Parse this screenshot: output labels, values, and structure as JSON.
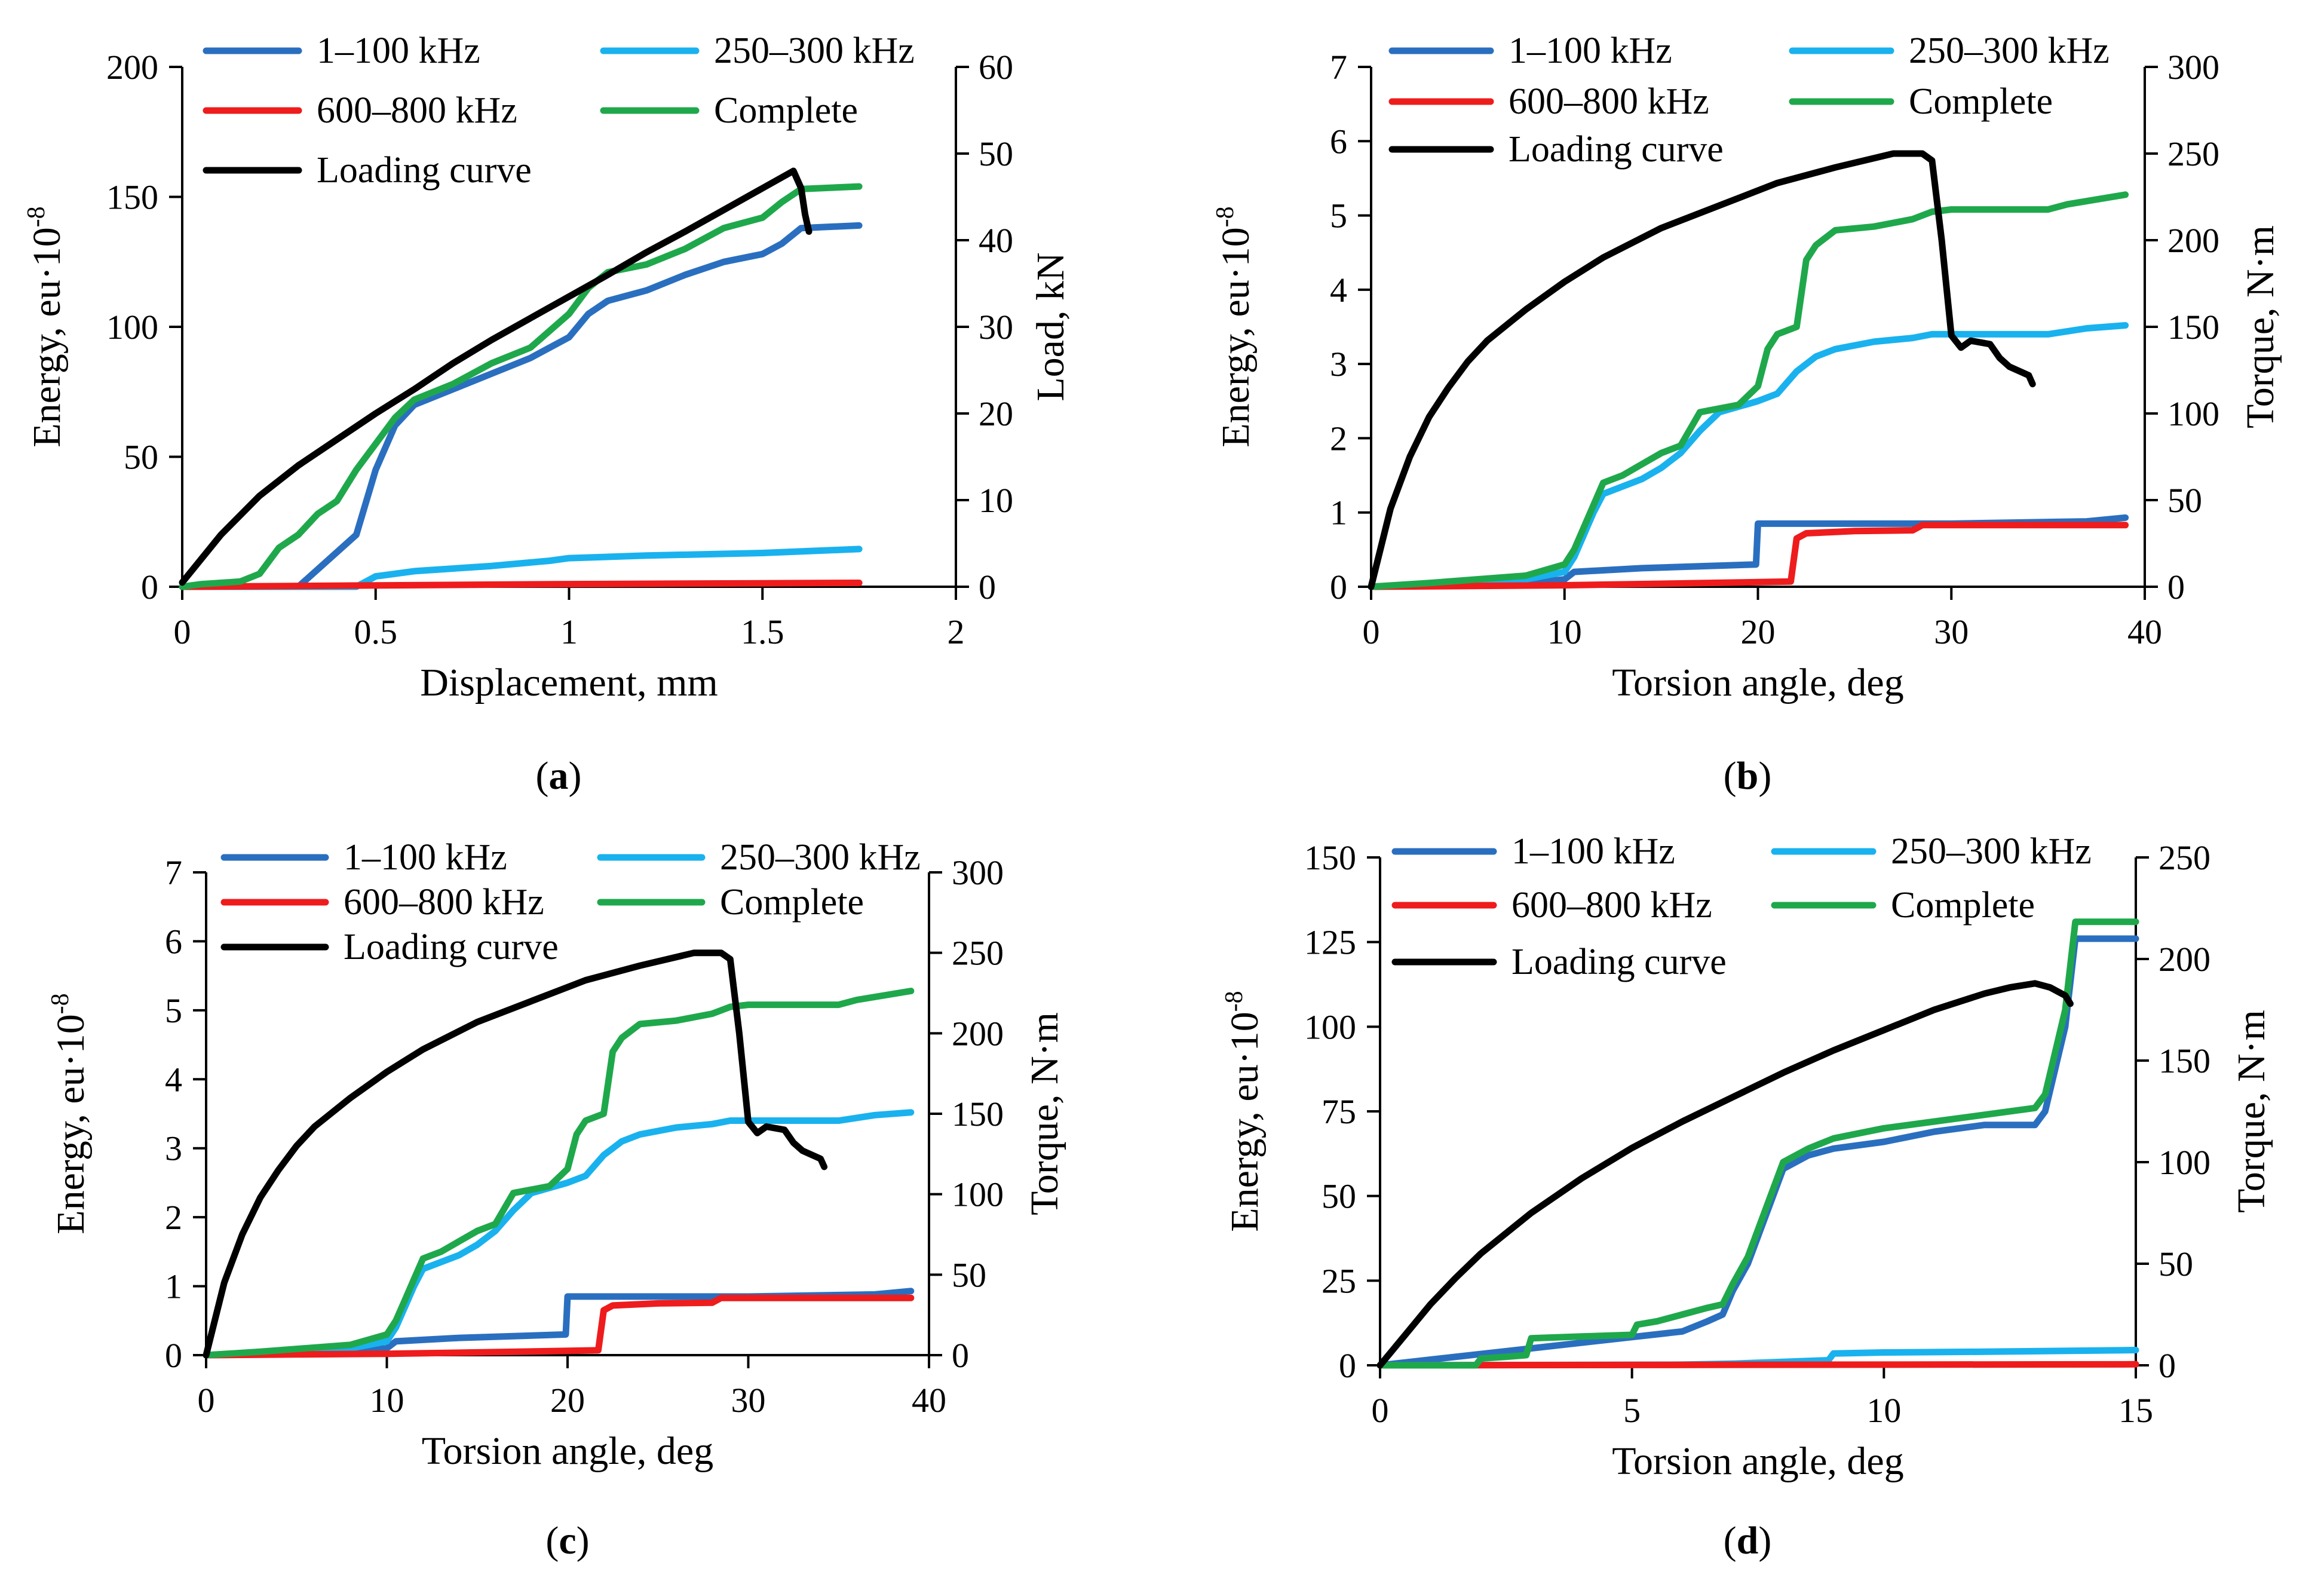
{
  "figure": {
    "captions": [
      "(a)",
      "(b)",
      "(c)",
      "(d)"
    ],
    "caption_letters": [
      "a",
      "b",
      "c",
      "d"
    ],
    "colors": {
      "band_1_100": "#2a6fbf",
      "band_250_300": "#19b2ee",
      "band_600_800": "#ee1c1c",
      "complete": "#1fa84b",
      "loading": "#000000"
    }
  },
  "chart_data": [
    {
      "type": "line",
      "panel": "a",
      "xlabel": "Displacement, mm",
      "ylabel": "Energy, eu·10",
      "ylabel_exp": "-8",
      "y2label": "Load, kN",
      "xlim": [
        0,
        2
      ],
      "ylim": [
        0,
        200
      ],
      "y2lim": [
        0,
        60
      ],
      "xticks": [
        0,
        0.5,
        1,
        1.5,
        2
      ],
      "xtick_labels": [
        "0",
        "0.5",
        "1",
        "1.5",
        "2"
      ],
      "yticks": [
        0,
        50,
        100,
        150,
        200
      ],
      "ytick_labels": [
        "0",
        "50",
        "100",
        "150",
        "200"
      ],
      "y2ticks": [
        0,
        10,
        20,
        30,
        40,
        50,
        60
      ],
      "y2tick_labels": [
        "0",
        "10",
        "20",
        "30",
        "40",
        "50",
        "60"
      ],
      "legend": [
        "1–100 kHz",
        "250–300 kHz",
        "600–800 kHz",
        "Complete",
        "Loading curve"
      ],
      "series": [
        {
          "name": "1–100 kHz",
          "axis": "left",
          "x": [
            0,
            0.1,
            0.2,
            0.3,
            0.45,
            0.5,
            0.55,
            0.6,
            0.7,
            0.8,
            0.9,
            1.0,
            1.05,
            1.1,
            1.2,
            1.3,
            1.4,
            1.5,
            1.55,
            1.6,
            1.75
          ],
          "y": [
            0,
            0,
            0,
            0,
            20,
            45,
            62,
            70,
            76,
            82,
            88,
            96,
            105,
            110,
            114,
            120,
            125,
            128,
            132,
            138,
            139
          ]
        },
        {
          "name": "250–300 kHz",
          "axis": "left",
          "x": [
            0,
            0.45,
            0.5,
            0.6,
            0.8,
            0.95,
            1.0,
            1.2,
            1.5,
            1.75
          ],
          "y": [
            0,
            0,
            4,
            6,
            8,
            10,
            11,
            12,
            13,
            14.5
          ]
        },
        {
          "name": "600–800 kHz",
          "axis": "left",
          "x": [
            0,
            0.5,
            1.0,
            1.75
          ],
          "y": [
            0,
            0.5,
            1,
            1.5
          ]
        },
        {
          "name": "Complete",
          "axis": "left",
          "x": [
            0,
            0.05,
            0.15,
            0.2,
            0.25,
            0.3,
            0.35,
            0.4,
            0.45,
            0.5,
            0.55,
            0.6,
            0.7,
            0.8,
            0.9,
            1.0,
            1.05,
            1.1,
            1.2,
            1.3,
            1.4,
            1.5,
            1.55,
            1.6,
            1.75
          ],
          "y": [
            0,
            1,
            2,
            5,
            15,
            20,
            28,
            33,
            45,
            55,
            65,
            72,
            78,
            86,
            92,
            105,
            115,
            121,
            124,
            130,
            138,
            142,
            148,
            153,
            154
          ]
        },
        {
          "name": "Loading curve",
          "axis": "right",
          "x": [
            0,
            0.1,
            0.2,
            0.3,
            0.4,
            0.5,
            0.6,
            0.7,
            0.8,
            0.9,
            1.0,
            1.1,
            1.2,
            1.3,
            1.4,
            1.5,
            1.58,
            1.6,
            1.61,
            1.62
          ],
          "y": [
            0.5,
            6,
            10.5,
            14,
            17,
            20,
            22.8,
            25.8,
            28.5,
            31,
            33.5,
            36,
            38.6,
            41,
            43.5,
            46,
            48,
            46,
            43,
            41
          ]
        }
      ]
    },
    {
      "type": "line",
      "panel": "b",
      "xlabel": "Torsion angle, deg",
      "ylabel": "Energy, eu·10",
      "ylabel_exp": "-8",
      "y2label": "Torque, N·m",
      "xlim": [
        0,
        40
      ],
      "ylim": [
        0,
        7
      ],
      "y2lim": [
        0,
        300
      ],
      "xticks": [
        0,
        10,
        20,
        30,
        40
      ],
      "xtick_labels": [
        "0",
        "10",
        "20",
        "30",
        "40"
      ],
      "yticks": [
        0,
        1,
        2,
        3,
        4,
        5,
        6,
        7
      ],
      "ytick_labels": [
        "0",
        "1",
        "2",
        "3",
        "4",
        "5",
        "6",
        "7"
      ],
      "y2ticks": [
        0,
        50,
        100,
        150,
        200,
        250,
        300
      ],
      "y2tick_labels": [
        "0",
        "50",
        "100",
        "150",
        "200",
        "250",
        "300"
      ],
      "legend": [
        "1–100 kHz",
        "250–300 kHz",
        "600–800 kHz",
        "Complete",
        "Loading curve"
      ],
      "series": [
        {
          "name": "1–100 kHz",
          "axis": "left",
          "x": [
            0,
            8,
            10,
            10.5,
            14,
            19.9,
            20,
            30,
            37,
            39
          ],
          "y": [
            0,
            0.05,
            0.1,
            0.2,
            0.25,
            0.3,
            0.85,
            0.85,
            0.88,
            0.93
          ]
        },
        {
          "name": "250–300 kHz",
          "axis": "left",
          "x": [
            0,
            8,
            10,
            10.5,
            11,
            11.5,
            12,
            14,
            15,
            16,
            17,
            18,
            20,
            21,
            22,
            23,
            24,
            26,
            28,
            29,
            30,
            35,
            37,
            39
          ],
          "y": [
            0,
            0.1,
            0.2,
            0.4,
            0.7,
            1.0,
            1.25,
            1.45,
            1.6,
            1.8,
            2.1,
            2.35,
            2.5,
            2.6,
            2.9,
            3.1,
            3.2,
            3.3,
            3.35,
            3.4,
            3.4,
            3.4,
            3.48,
            3.52
          ]
        },
        {
          "name": "600–800 kHz",
          "axis": "left",
          "x": [
            0,
            5,
            10,
            15,
            21.7,
            22,
            22.5,
            25,
            28,
            28.5,
            39
          ],
          "y": [
            0,
            0.01,
            0.02,
            0.04,
            0.07,
            0.65,
            0.72,
            0.75,
            0.76,
            0.83,
            0.83
          ]
        },
        {
          "name": "Complete",
          "axis": "left",
          "x": [
            0,
            3,
            8,
            10,
            10.5,
            11,
            11.5,
            12,
            13,
            14,
            15,
            16,
            17,
            19,
            20,
            20.5,
            21,
            22,
            22.5,
            23,
            24,
            26,
            28,
            29,
            30,
            35,
            36,
            39
          ],
          "y": [
            0,
            0.05,
            0.15,
            0.3,
            0.5,
            0.8,
            1.1,
            1.4,
            1.5,
            1.65,
            1.8,
            1.9,
            2.35,
            2.45,
            2.7,
            3.2,
            3.4,
            3.5,
            4.4,
            4.6,
            4.8,
            4.85,
            4.95,
            5.05,
            5.08,
            5.08,
            5.15,
            5.28
          ]
        },
        {
          "name": "Loading curve",
          "axis": "right",
          "x": [
            0,
            1,
            2,
            3,
            4,
            5,
            6,
            8,
            10,
            12,
            15,
            18,
            21,
            24,
            27,
            28.5,
            29,
            29.5,
            30,
            30.5,
            31,
            32,
            32.5,
            33,
            34,
            34.2
          ],
          "y": [
            0,
            45,
            75,
            98,
            115,
            130,
            142,
            160,
            176,
            190,
            207,
            220,
            233,
            242,
            250,
            250,
            246,
            200,
            145,
            138,
            142,
            140,
            132,
            127,
            122,
            117
          ]
        }
      ]
    },
    {
      "type": "line",
      "panel": "c",
      "xlabel": "Torsion angle, deg",
      "ylabel": "Energy, eu·10",
      "ylabel_exp": "-8",
      "y2label": "Torque, N·m",
      "xlim": [
        0,
        40
      ],
      "ylim": [
        0,
        7
      ],
      "y2lim": [
        0,
        300
      ],
      "xticks": [
        0,
        10,
        20,
        30,
        40
      ],
      "xtick_labels": [
        "0",
        "10",
        "20",
        "30",
        "40"
      ],
      "yticks": [
        0,
        1,
        2,
        3,
        4,
        5,
        6,
        7
      ],
      "ytick_labels": [
        "0",
        "1",
        "2",
        "3",
        "4",
        "5",
        "6",
        "7"
      ],
      "y2ticks": [
        0,
        50,
        100,
        150,
        200,
        250,
        300
      ],
      "y2tick_labels": [
        "0",
        "50",
        "100",
        "150",
        "200",
        "250",
        "300"
      ],
      "legend": [
        "1–100 kHz",
        "250–300 kHz",
        "600–800 kHz",
        "Complete",
        "Loading curve"
      ],
      "series": [
        {
          "name": "1–100 kHz",
          "axis": "left",
          "x": [
            0,
            8,
            10,
            10.5,
            14,
            19.9,
            20,
            30,
            37,
            39
          ],
          "y": [
            0,
            0.05,
            0.1,
            0.2,
            0.25,
            0.3,
            0.85,
            0.85,
            0.88,
            0.93
          ]
        },
        {
          "name": "250–300 kHz",
          "axis": "left",
          "x": [
            0,
            8,
            10,
            10.5,
            11,
            11.5,
            12,
            14,
            15,
            16,
            17,
            18,
            20,
            21,
            22,
            23,
            24,
            26,
            28,
            29,
            30,
            35,
            37,
            39
          ],
          "y": [
            0,
            0.1,
            0.2,
            0.4,
            0.7,
            1.0,
            1.25,
            1.45,
            1.6,
            1.8,
            2.1,
            2.35,
            2.5,
            2.6,
            2.9,
            3.1,
            3.2,
            3.3,
            3.35,
            3.4,
            3.4,
            3.4,
            3.48,
            3.52
          ]
        },
        {
          "name": "600–800 kHz",
          "axis": "left",
          "x": [
            0,
            5,
            10,
            15,
            21.7,
            22,
            22.5,
            25,
            28,
            28.5,
            39
          ],
          "y": [
            0,
            0.01,
            0.02,
            0.04,
            0.07,
            0.65,
            0.72,
            0.75,
            0.76,
            0.83,
            0.83
          ]
        },
        {
          "name": "Complete",
          "axis": "left",
          "x": [
            0,
            3,
            8,
            10,
            10.5,
            11,
            11.5,
            12,
            13,
            14,
            15,
            16,
            17,
            19,
            20,
            20.5,
            21,
            22,
            22.5,
            23,
            24,
            26,
            28,
            29,
            30,
            35,
            36,
            39
          ],
          "y": [
            0,
            0.05,
            0.15,
            0.3,
            0.5,
            0.8,
            1.1,
            1.4,
            1.5,
            1.65,
            1.8,
            1.9,
            2.35,
            2.45,
            2.7,
            3.2,
            3.4,
            3.5,
            4.4,
            4.6,
            4.8,
            4.85,
            4.95,
            5.05,
            5.08,
            5.08,
            5.15,
            5.28
          ]
        },
        {
          "name": "Loading curve",
          "axis": "right",
          "x": [
            0,
            1,
            2,
            3,
            4,
            5,
            6,
            8,
            10,
            12,
            15,
            18,
            21,
            24,
            27,
            28.5,
            29,
            29.5,
            30,
            30.5,
            31,
            32,
            32.5,
            33,
            34,
            34.2
          ],
          "y": [
            0,
            45,
            75,
            98,
            115,
            130,
            142,
            160,
            176,
            190,
            207,
            220,
            233,
            242,
            250,
            250,
            246,
            200,
            145,
            138,
            142,
            140,
            132,
            127,
            122,
            117
          ]
        }
      ]
    },
    {
      "type": "line",
      "panel": "d",
      "xlabel": "Torsion angle, deg",
      "ylabel": "Energy, eu·10",
      "ylabel_exp": "-8",
      "y2label": "Torque, N·m",
      "xlim": [
        0,
        15
      ],
      "ylim": [
        0,
        150
      ],
      "y2lim": [
        0,
        250
      ],
      "xticks": [
        0,
        5,
        10,
        15
      ],
      "xtick_labels": [
        "0",
        "5",
        "10",
        "15"
      ],
      "yticks": [
        0,
        25,
        50,
        75,
        100,
        125,
        150
      ],
      "ytick_labels": [
        "0",
        "25",
        "50",
        "75",
        "100",
        "125",
        "150"
      ],
      "y2ticks": [
        0,
        50,
        100,
        150,
        200,
        250
      ],
      "y2tick_labels": [
        "0",
        "50",
        "100",
        "150",
        "200",
        "250"
      ],
      "legend": [
        "1–100 kHz",
        "250–300 kHz",
        "600–800 kHz",
        "Complete",
        "Loading curve"
      ],
      "series": [
        {
          "name": "1–100 kHz",
          "axis": "left",
          "x": [
            0,
            6,
            6.5,
            6.8,
            7,
            7.3,
            7.6,
            8,
            8.5,
            9,
            10,
            11,
            12,
            13,
            13.2,
            13.6,
            13.8,
            15
          ],
          "y": [
            0,
            10,
            13,
            15,
            22,
            30,
            42,
            58,
            62,
            64,
            66,
            69,
            71,
            71,
            75,
            100,
            126,
            126
          ]
        },
        {
          "name": "250–300 kHz",
          "axis": "left",
          "x": [
            0,
            6,
            7,
            8,
            8.9,
            9,
            10,
            12,
            15
          ],
          "y": [
            0,
            0.2,
            0.5,
            1,
            1.5,
            3.5,
            3.8,
            4,
            4.5
          ]
        },
        {
          "name": "600–800 kHz",
          "axis": "left",
          "x": [
            0,
            5,
            10,
            15
          ],
          "y": [
            0,
            0.1,
            0.2,
            0.3
          ]
        },
        {
          "name": "Complete",
          "axis": "left",
          "x": [
            0,
            1.9,
            2,
            2.5,
            2.9,
            3,
            4,
            5,
            5.1,
            5.5,
            6,
            6.5,
            6.8,
            7,
            7.3,
            7.6,
            8,
            8.5,
            9,
            10,
            11,
            12,
            13,
            13.2,
            13.6,
            13.8,
            15
          ],
          "y": [
            0,
            0,
            2,
            2.5,
            3,
            8,
            8.5,
            9,
            12,
            13,
            15,
            17,
            18,
            24,
            32,
            44,
            60,
            64,
            67,
            70,
            72,
            74,
            76,
            80,
            105,
            131,
            131
          ]
        },
        {
          "name": "Loading curve",
          "axis": "right",
          "x": [
            0,
            0.5,
            1,
            1.5,
            2,
            3,
            4,
            5,
            6,
            7,
            8,
            9,
            10,
            11,
            12,
            12.5,
            13,
            13.3,
            13.6,
            13.7
          ],
          "y": [
            0,
            15,
            30,
            43,
            55,
            75,
            92,
            107,
            120,
            132,
            144,
            155,
            165,
            175,
            183,
            186,
            188,
            186,
            182,
            178
          ]
        }
      ]
    }
  ]
}
